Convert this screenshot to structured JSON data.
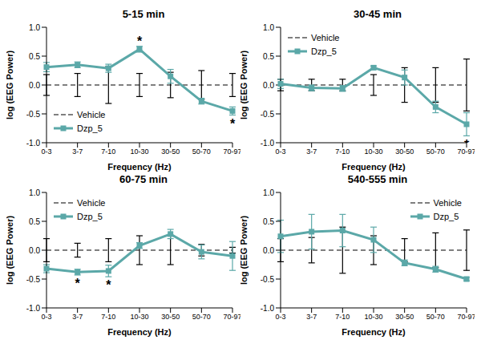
{
  "chart_data": [
    {
      "type": "line",
      "title": "5-15 min",
      "x_label": "Frequency (Hz)",
      "y_label": "log (EEG Power)",
      "categories": [
        "0-3",
        "3-7",
        "7-10",
        "10-30",
        "30-50",
        "50-70",
        "70-97"
      ],
      "ylim": [
        -1,
        1
      ],
      "yticks": [
        {
          "value": -1,
          "label": "-1.0"
        },
        {
          "value": -0.5,
          "label": "-0.5"
        },
        {
          "value": 0,
          "label": "0.0"
        },
        {
          "value": 0.5,
          "label": "0.5"
        },
        {
          "value": 1,
          "label": "1.0"
        }
      ],
      "legend": "lower left",
      "series": [
        {
          "name": "Vehicle",
          "color": "#000000",
          "line_style": "dashed",
          "marker": "none",
          "values": [
            0,
            0,
            0,
            0,
            0,
            0,
            0
          ],
          "error": [
            0.18,
            0.2,
            0.32,
            0.2,
            0.22,
            0.25,
            0.2
          ]
        },
        {
          "name": "Dzp_5",
          "color": "#5ba8a8",
          "line_style": "solid",
          "marker": "square",
          "values": [
            0.31,
            0.35,
            0.29,
            0.62,
            0.15,
            -0.28,
            -0.45
          ],
          "error": [
            0.08,
            0.05,
            0.07,
            0.05,
            0.12,
            0.05,
            0.07
          ]
        }
      ],
      "annotations": [
        {
          "x": "10-30",
          "text": "*"
        },
        {
          "x": "70-97",
          "text": "*"
        }
      ]
    },
    {
      "type": "line",
      "title": "30-45 min",
      "x_label": "Frequency (Hz)",
      "y_label": "log (EEG Power)",
      "categories": [
        "0-3",
        "3-7",
        "7-10",
        "10-30",
        "30-50",
        "50-70",
        "70-97"
      ],
      "ylim": [
        -1,
        1
      ],
      "yticks": [
        {
          "value": -1,
          "label": "-1.0"
        },
        {
          "value": -0.5,
          "label": "-0.5"
        },
        {
          "value": 0,
          "label": "0.0"
        },
        {
          "value": 0.5,
          "label": "0.5"
        },
        {
          "value": 1,
          "label": "1.0"
        }
      ],
      "legend": "upper left",
      "series": [
        {
          "name": "Vehicle",
          "color": "#000000",
          "line_style": "dashed",
          "marker": "none",
          "values": [
            0,
            0,
            0,
            0,
            0,
            0,
            0
          ],
          "error": [
            0.1,
            0.1,
            0.1,
            0.18,
            0.3,
            0.3,
            0.45
          ]
        },
        {
          "name": "Dzp_5",
          "color": "#5ba8a8",
          "line_style": "solid",
          "marker": "square",
          "values": [
            0.02,
            -0.05,
            -0.06,
            0.3,
            0.13,
            -0.38,
            -0.68
          ],
          "error": [
            0.08,
            0.05,
            0.05,
            0.03,
            0.13,
            0.1,
            0.2
          ]
        }
      ],
      "annotations": [
        {
          "x": "70-97",
          "text": "*"
        }
      ]
    },
    {
      "type": "line",
      "title": "60-75 min",
      "x_label": "Frequency (Hz)",
      "y_label": "log (EEG Power)",
      "categories": [
        "0-3",
        "3-7",
        "7-10",
        "10-30",
        "30-50",
        "50-70",
        "70-97"
      ],
      "ylim": [
        -1,
        1
      ],
      "yticks": [
        {
          "value": -1,
          "label": "-1.0"
        },
        {
          "value": -0.5,
          "label": "-0.5"
        },
        {
          "value": 0,
          "label": "0.0"
        },
        {
          "value": 0.5,
          "label": "0.5"
        },
        {
          "value": 1,
          "label": "1.0"
        }
      ],
      "legend": "upper left",
      "series": [
        {
          "name": "Vehicle",
          "color": "#000000",
          "line_style": "dashed",
          "marker": "none",
          "values": [
            0,
            0,
            0,
            0,
            0,
            0,
            0
          ],
          "error": [
            0.2,
            0.12,
            0.2,
            0.25,
            0.25,
            0.1,
            0.05
          ]
        },
        {
          "name": "Dzp_5",
          "color": "#5ba8a8",
          "line_style": "solid",
          "marker": "square",
          "values": [
            -0.32,
            -0.38,
            -0.36,
            0.08,
            0.28,
            -0.03,
            -0.1
          ],
          "error": [
            0.07,
            0.05,
            0.1,
            0.05,
            0.08,
            0.12,
            0.25
          ]
        }
      ],
      "annotations": [
        {
          "x": "3-7",
          "text": "*"
        },
        {
          "x": "7-10",
          "text": "*"
        }
      ]
    },
    {
      "type": "line",
      "title": "540-555 min",
      "x_label": "Frequency (Hz)",
      "y_label": "log (EEG Power)",
      "categories": [
        "0-3",
        "3-7",
        "7-10",
        "10-30",
        "30-50",
        "50-70",
        "70-97"
      ],
      "ylim": [
        -1,
        1
      ],
      "yticks": [
        {
          "value": -1,
          "label": "-1.0"
        },
        {
          "value": -0.5,
          "label": "-0.5"
        },
        {
          "value": 0,
          "label": "0.0"
        },
        {
          "value": 0.5,
          "label": "0.5"
        },
        {
          "value": 1,
          "label": "1.0"
        }
      ],
      "legend": "upper right",
      "series": [
        {
          "name": "Vehicle",
          "color": "#000000",
          "line_style": "dashed",
          "marker": "none",
          "values": [
            0,
            0,
            0,
            0,
            0,
            0,
            0
          ],
          "error": [
            0.2,
            0.22,
            0.4,
            0.25,
            0.2,
            0.3,
            0.35
          ]
        },
        {
          "name": "Dzp_5",
          "color": "#5ba8a8",
          "line_style": "solid",
          "marker": "square",
          "values": [
            0.24,
            0.32,
            0.34,
            0.18,
            -0.22,
            -0.33,
            -0.5
          ],
          "error": [
            0.28,
            0.3,
            0.28,
            0.22,
            0.05,
            0.05,
            0.03
          ]
        }
      ],
      "annotations": []
    }
  ]
}
